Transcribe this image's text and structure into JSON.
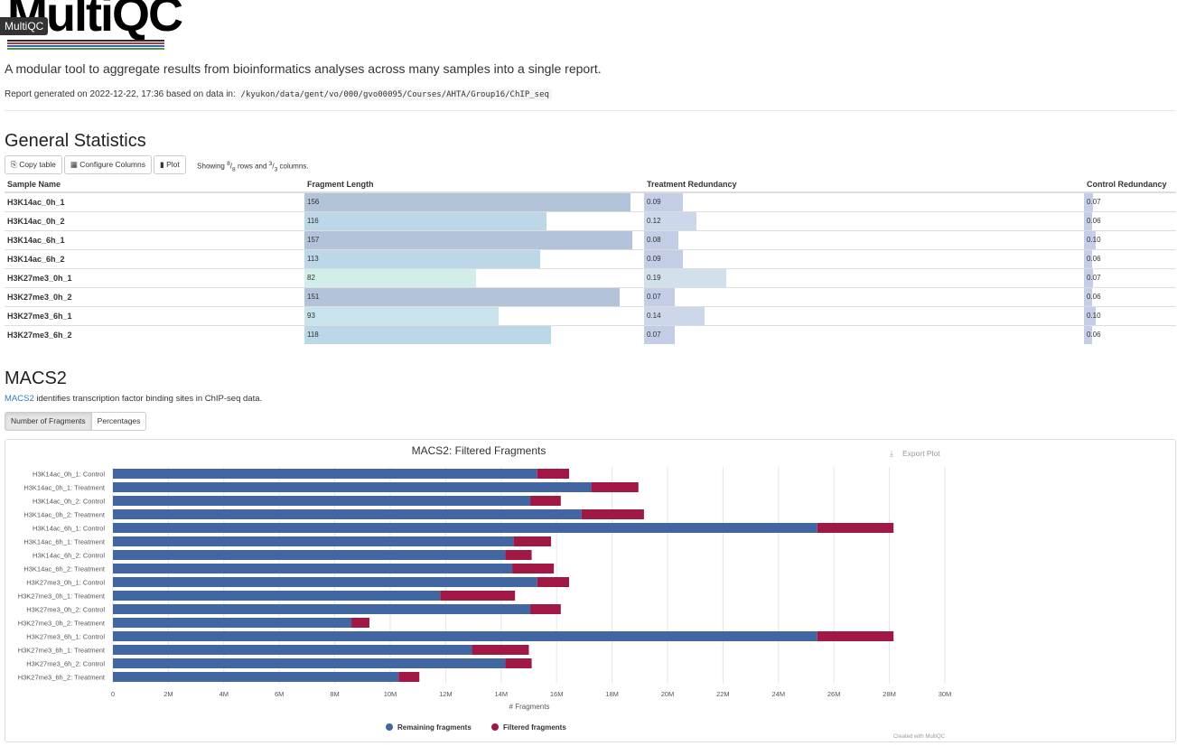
{
  "header": {
    "logo_text": "MultiQC",
    "badge": "MultiQC",
    "tagline": "A modular tool to aggregate results from bioinformatics analyses across many samples into a single report.",
    "generated_prefix": "Report generated on 2022-12-22, 17:36 based on data in:",
    "data_path": "/kyukon/data/gent/vo/000/gvo00095/Courses/AHTA/Group16/ChIP_seq"
  },
  "general_stats": {
    "title": "General Statistics",
    "buttons": {
      "copy": "Copy table",
      "configure": "Configure Columns",
      "plot": "Plot"
    },
    "showing": {
      "prefix": "Showing ",
      "rows_num": "8",
      "rows_den": "8",
      "mid": " rows and ",
      "cols_num": "3",
      "cols_den": "3",
      "suffix": " columns."
    },
    "columns": [
      "Sample Name",
      "Fragment Length",
      "Treatment Redundancy",
      "Control Redundancy"
    ],
    "rows": [
      {
        "sample": "H3K14ac_0h_1",
        "frag": "156",
        "frag_v": 156,
        "treat": "0.09",
        "treat_v": 0.09,
        "ctrl": "0.07",
        "ctrl_v": 0.07
      },
      {
        "sample": "H3K14ac_0h_2",
        "frag": "116",
        "frag_v": 116,
        "treat": "0.12",
        "treat_v": 0.12,
        "ctrl": "0.06",
        "ctrl_v": 0.06
      },
      {
        "sample": "H3K14ac_6h_1",
        "frag": "157",
        "frag_v": 157,
        "treat": "0.08",
        "treat_v": 0.08,
        "ctrl": "0.10",
        "ctrl_v": 0.1
      },
      {
        "sample": "H3K14ac_6h_2",
        "frag": "113",
        "frag_v": 113,
        "treat": "0.09",
        "treat_v": 0.09,
        "ctrl": "0.06",
        "ctrl_v": 0.06
      },
      {
        "sample": "H3K27me3_0h_1",
        "frag": "82",
        "frag_v": 82,
        "treat": "0.19",
        "treat_v": 0.19,
        "ctrl": "0.07",
        "ctrl_v": 0.07
      },
      {
        "sample": "H3K27me3_0h_2",
        "frag": "151",
        "frag_v": 151,
        "treat": "0.07",
        "treat_v": 0.07,
        "ctrl": "0.06",
        "ctrl_v": 0.06
      },
      {
        "sample": "H3K27me3_6h_1",
        "frag": "93",
        "frag_v": 93,
        "treat": "0.14",
        "treat_v": 0.14,
        "ctrl": "0.10",
        "ctrl_v": 0.1
      },
      {
        "sample": "H3K27me3_6h_2",
        "frag": "118",
        "frag_v": 118,
        "treat": "0.07",
        "treat_v": 0.07,
        "ctrl": "0.06",
        "ctrl_v": 0.06
      }
    ]
  },
  "macs2": {
    "title": "MACS2",
    "link": "MACS2",
    "desc": " identifies transcription factor binding sites in ChIP-seq data.",
    "buttons": {
      "fragments": "Number of Fragments",
      "percentages": "Percentages"
    },
    "export": "Export Plot",
    "credit": "Created with MultiQC"
  },
  "colors": {
    "remaining": "#4266a1",
    "filtered": "#a11844"
  },
  "chart_data": {
    "type": "bar",
    "orientation": "horizontal",
    "stacked": true,
    "title": "MACS2: Filtered Fragments",
    "xlabel": "# Fragments",
    "xlim": [
      0,
      30000000
    ],
    "xticks": [
      "0",
      "2M",
      "4M",
      "6M",
      "8M",
      "10M",
      "12M",
      "14M",
      "16M",
      "18M",
      "20M",
      "22M",
      "24M",
      "26M",
      "28M",
      "30M"
    ],
    "legend_position": "bottom",
    "grid": true,
    "categories": [
      "H3K14ac_0h_1: Control",
      "H3K14ac_0h_1: Treatment",
      "H3K14ac_0h_2: Control",
      "H3K14ac_0h_2: Treatment",
      "H3K14ac_6h_1: Control",
      "H3K14ac_6h_1: Treatment",
      "H3K14ac_6h_2: Control",
      "H3K14ac_6h_2: Treatment",
      "H3K27me3_0h_1: Control",
      "H3K27me3_0h_1: Treatment",
      "H3K27me3_0h_2: Control",
      "H3K27me3_0h_2: Treatment",
      "H3K27me3_6h_1: Control",
      "H3K27me3_6h_1: Treatment",
      "H3K27me3_6h_2: Control",
      "H3K27me3_6h_2: Treatment"
    ],
    "series": [
      {
        "name": "Remaining fragments",
        "values": [
          15300000,
          17250000,
          15050000,
          16900000,
          25400000,
          14450000,
          14150000,
          14400000,
          15300000,
          11800000,
          15050000,
          8600000,
          25400000,
          12950000,
          14150000,
          10300000
        ]
      },
      {
        "name": "Filtered fragments",
        "values": [
          1150000,
          1700000,
          1100000,
          2250000,
          2750000,
          1350000,
          950000,
          1500000,
          1150000,
          2700000,
          1100000,
          650000,
          2750000,
          2050000,
          950000,
          750000
        ]
      }
    ]
  }
}
